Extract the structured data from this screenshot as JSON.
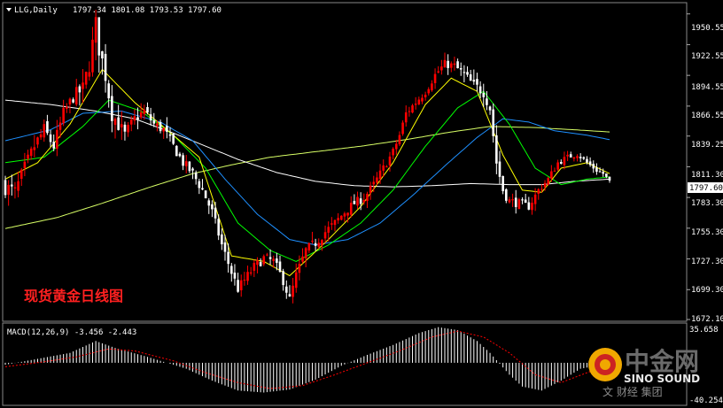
{
  "header": {
    "symbol": "LLG,Daily",
    "ohlc": "1797.34 1801.08 1793.53 1797.60"
  },
  "annotation": "现货黄金日线图",
  "price_axis": {
    "ticks": [
      "1950.55",
      "1922.55",
      "1894.55",
      "1866.55",
      "1839.25",
      "1811.30",
      "1783.30",
      "1755.30",
      "1727.30",
      "1699.30",
      "1672.10"
    ],
    "current_price": "1797.60"
  },
  "macd": {
    "label": "MACD(12,26,9) -3.456 -2.443",
    "ticks": [
      "35.658",
      "-40.254"
    ]
  },
  "logo": {
    "cn": "中金网",
    "en": "SINO SOUND",
    "sub": "文 财经 集团"
  },
  "colors": {
    "background": "#000000",
    "bull_candle": "#ff0000",
    "bear_candle": "#ffffff",
    "ma_short": "#ffff00",
    "ma_mid": "#00ff00",
    "ma_long": "#1e90ff",
    "ma_longer": "#ffffff",
    "ma_longest": "#d8ff66",
    "macd_hist": "#ffffff",
    "macd_signal": "#ff0000"
  },
  "chart_data": {
    "type": "candlestick",
    "price_range": [
      1672.1,
      1960.0
    ],
    "macd_range": [
      -40.254,
      35.658
    ],
    "series_anchors": {
      "close": [
        [
          0,
          1793
        ],
        [
          3,
          1788
        ],
        [
          6,
          1810
        ],
        [
          9,
          1830
        ],
        [
          12,
          1845
        ],
        [
          15,
          1830
        ],
        [
          18,
          1860
        ],
        [
          21,
          1875
        ],
        [
          24,
          1882
        ],
        [
          26,
          1905
        ],
        [
          28,
          1940
        ],
        [
          29,
          1920
        ],
        [
          31,
          1895
        ],
        [
          33,
          1860
        ],
        [
          35,
          1850
        ],
        [
          37,
          1840
        ],
        [
          40,
          1855
        ],
        [
          43,
          1862
        ],
        [
          46,
          1850
        ],
        [
          49,
          1845
        ],
        [
          52,
          1830
        ],
        [
          55,
          1815
        ],
        [
          58,
          1805
        ],
        [
          61,
          1790
        ],
        [
          64,
          1770
        ],
        [
          67,
          1740
        ],
        [
          70,
          1715
        ],
        [
          72,
          1700
        ],
        [
          74,
          1708
        ],
        [
          77,
          1720
        ],
        [
          80,
          1728
        ],
        [
          83,
          1725
        ],
        [
          86,
          1708
        ],
        [
          88,
          1690
        ],
        [
          90,
          1712
        ],
        [
          93,
          1735
        ],
        [
          96,
          1742
        ],
        [
          99,
          1752
        ],
        [
          102,
          1760
        ],
        [
          105,
          1770
        ],
        [
          108,
          1778
        ],
        [
          111,
          1783
        ],
        [
          114,
          1795
        ],
        [
          117,
          1810
        ],
        [
          120,
          1825
        ],
        [
          122,
          1840
        ],
        [
          124,
          1860
        ],
        [
          127,
          1870
        ],
        [
          130,
          1880
        ],
        [
          133,
          1895
        ],
        [
          136,
          1905
        ],
        [
          139,
          1903
        ],
        [
          142,
          1895
        ],
        [
          145,
          1885
        ],
        [
          148,
          1880
        ],
        [
          150,
          1865
        ],
        [
          152,
          1815
        ],
        [
          154,
          1790
        ],
        [
          156,
          1780
        ],
        [
          159,
          1778
        ],
        [
          162,
          1775
        ],
        [
          165,
          1790
        ],
        [
          168,
          1800
        ],
        [
          171,
          1815
        ],
        [
          174,
          1820
        ],
        [
          177,
          1823
        ],
        [
          180,
          1815
        ],
        [
          183,
          1808
        ],
        [
          185,
          1805
        ],
        [
          187,
          1797.6
        ]
      ],
      "hl_spread": [
        [
          0,
          30
        ],
        [
          20,
          22
        ],
        [
          28,
          40
        ],
        [
          40,
          20
        ],
        [
          70,
          18
        ],
        [
          88,
          20
        ],
        [
          120,
          15
        ],
        [
          136,
          15
        ],
        [
          150,
          25
        ],
        [
          160,
          15
        ],
        [
          187,
          8
        ]
      ],
      "ma_short": [
        [
          0,
          1800
        ],
        [
          10,
          1815
        ],
        [
          20,
          1850
        ],
        [
          30,
          1900
        ],
        [
          40,
          1870
        ],
        [
          50,
          1845
        ],
        [
          60,
          1820
        ],
        [
          70,
          1730
        ],
        [
          80,
          1725
        ],
        [
          88,
          1712
        ],
        [
          100,
          1745
        ],
        [
          110,
          1775
        ],
        [
          120,
          1815
        ],
        [
          130,
          1868
        ],
        [
          138,
          1892
        ],
        [
          146,
          1880
        ],
        [
          154,
          1822
        ],
        [
          160,
          1790
        ],
        [
          166,
          1788
        ],
        [
          172,
          1810
        ],
        [
          180,
          1815
        ],
        [
          187,
          1805
        ]
      ],
      "ma_mid": [
        [
          0,
          1815
        ],
        [
          12,
          1820
        ],
        [
          24,
          1848
        ],
        [
          32,
          1872
        ],
        [
          42,
          1862
        ],
        [
          52,
          1840
        ],
        [
          62,
          1810
        ],
        [
          72,
          1760
        ],
        [
          82,
          1735
        ],
        [
          90,
          1725
        ],
        [
          100,
          1740
        ],
        [
          110,
          1760
        ],
        [
          120,
          1790
        ],
        [
          130,
          1830
        ],
        [
          140,
          1865
        ],
        [
          148,
          1880
        ],
        [
          156,
          1850
        ],
        [
          164,
          1810
        ],
        [
          172,
          1795
        ],
        [
          180,
          1800
        ],
        [
          187,
          1802
        ]
      ],
      "ma_long": [
        [
          0,
          1835
        ],
        [
          14,
          1845
        ],
        [
          24,
          1860
        ],
        [
          36,
          1862
        ],
        [
          48,
          1852
        ],
        [
          58,
          1835
        ],
        [
          68,
          1800
        ],
        [
          78,
          1768
        ],
        [
          88,
          1745
        ],
        [
          96,
          1740
        ],
        [
          106,
          1745
        ],
        [
          116,
          1760
        ],
        [
          126,
          1785
        ],
        [
          136,
          1812
        ],
        [
          146,
          1838
        ],
        [
          154,
          1855
        ],
        [
          162,
          1852
        ],
        [
          170,
          1844
        ],
        [
          180,
          1840
        ],
        [
          187,
          1836
        ]
      ],
      "ma_longer": [
        [
          0,
          1872
        ],
        [
          14,
          1868
        ],
        [
          28,
          1862
        ],
        [
          40,
          1855
        ],
        [
          52,
          1842
        ],
        [
          62,
          1830
        ],
        [
          72,
          1818
        ],
        [
          84,
          1806
        ],
        [
          96,
          1798
        ],
        [
          108,
          1794
        ],
        [
          120,
          1793
        ],
        [
          132,
          1794
        ],
        [
          144,
          1796
        ],
        [
          156,
          1795
        ],
        [
          166,
          1795
        ],
        [
          176,
          1798
        ],
        [
          187,
          1800
        ]
      ],
      "ma_longest": [
        [
          0,
          1755
        ],
        [
          16,
          1765
        ],
        [
          30,
          1778
        ],
        [
          44,
          1792
        ],
        [
          58,
          1805
        ],
        [
          70,
          1813
        ],
        [
          82,
          1820
        ],
        [
          96,
          1825
        ],
        [
          110,
          1830
        ],
        [
          124,
          1836
        ],
        [
          138,
          1843
        ],
        [
          150,
          1848
        ],
        [
          164,
          1847
        ],
        [
          176,
          1845
        ],
        [
          187,
          1843
        ]
      ],
      "macd_hist": [
        [
          0,
          -2
        ],
        [
          10,
          4
        ],
        [
          20,
          10
        ],
        [
          28,
          22
        ],
        [
          34,
          15
        ],
        [
          44,
          6
        ],
        [
          56,
          -6
        ],
        [
          64,
          -18
        ],
        [
          72,
          -28
        ],
        [
          80,
          -30
        ],
        [
          88,
          -27
        ],
        [
          96,
          -17
        ],
        [
          104,
          -3
        ],
        [
          112,
          8
        ],
        [
          120,
          18
        ],
        [
          128,
          30
        ],
        [
          134,
          36
        ],
        [
          140,
          33
        ],
        [
          146,
          22
        ],
        [
          150,
          10
        ],
        [
          156,
          -12
        ],
        [
          160,
          -24
        ],
        [
          166,
          -28
        ],
        [
          172,
          -18
        ],
        [
          178,
          -6
        ],
        [
          183,
          -3
        ],
        [
          187,
          -3.456
        ]
      ],
      "macd_signal": [
        [
          0,
          -4
        ],
        [
          12,
          1
        ],
        [
          22,
          6
        ],
        [
          32,
          14
        ],
        [
          40,
          12
        ],
        [
          52,
          2
        ],
        [
          62,
          -10
        ],
        [
          72,
          -20
        ],
        [
          82,
          -26
        ],
        [
          92,
          -23
        ],
        [
          102,
          -12
        ],
        [
          112,
          0
        ],
        [
          122,
          12
        ],
        [
          132,
          26
        ],
        [
          140,
          32
        ],
        [
          148,
          26
        ],
        [
          156,
          10
        ],
        [
          164,
          -12
        ],
        [
          172,
          -20
        ],
        [
          180,
          -10
        ],
        [
          187,
          -2.443
        ]
      ]
    },
    "candle_count": 188
  }
}
